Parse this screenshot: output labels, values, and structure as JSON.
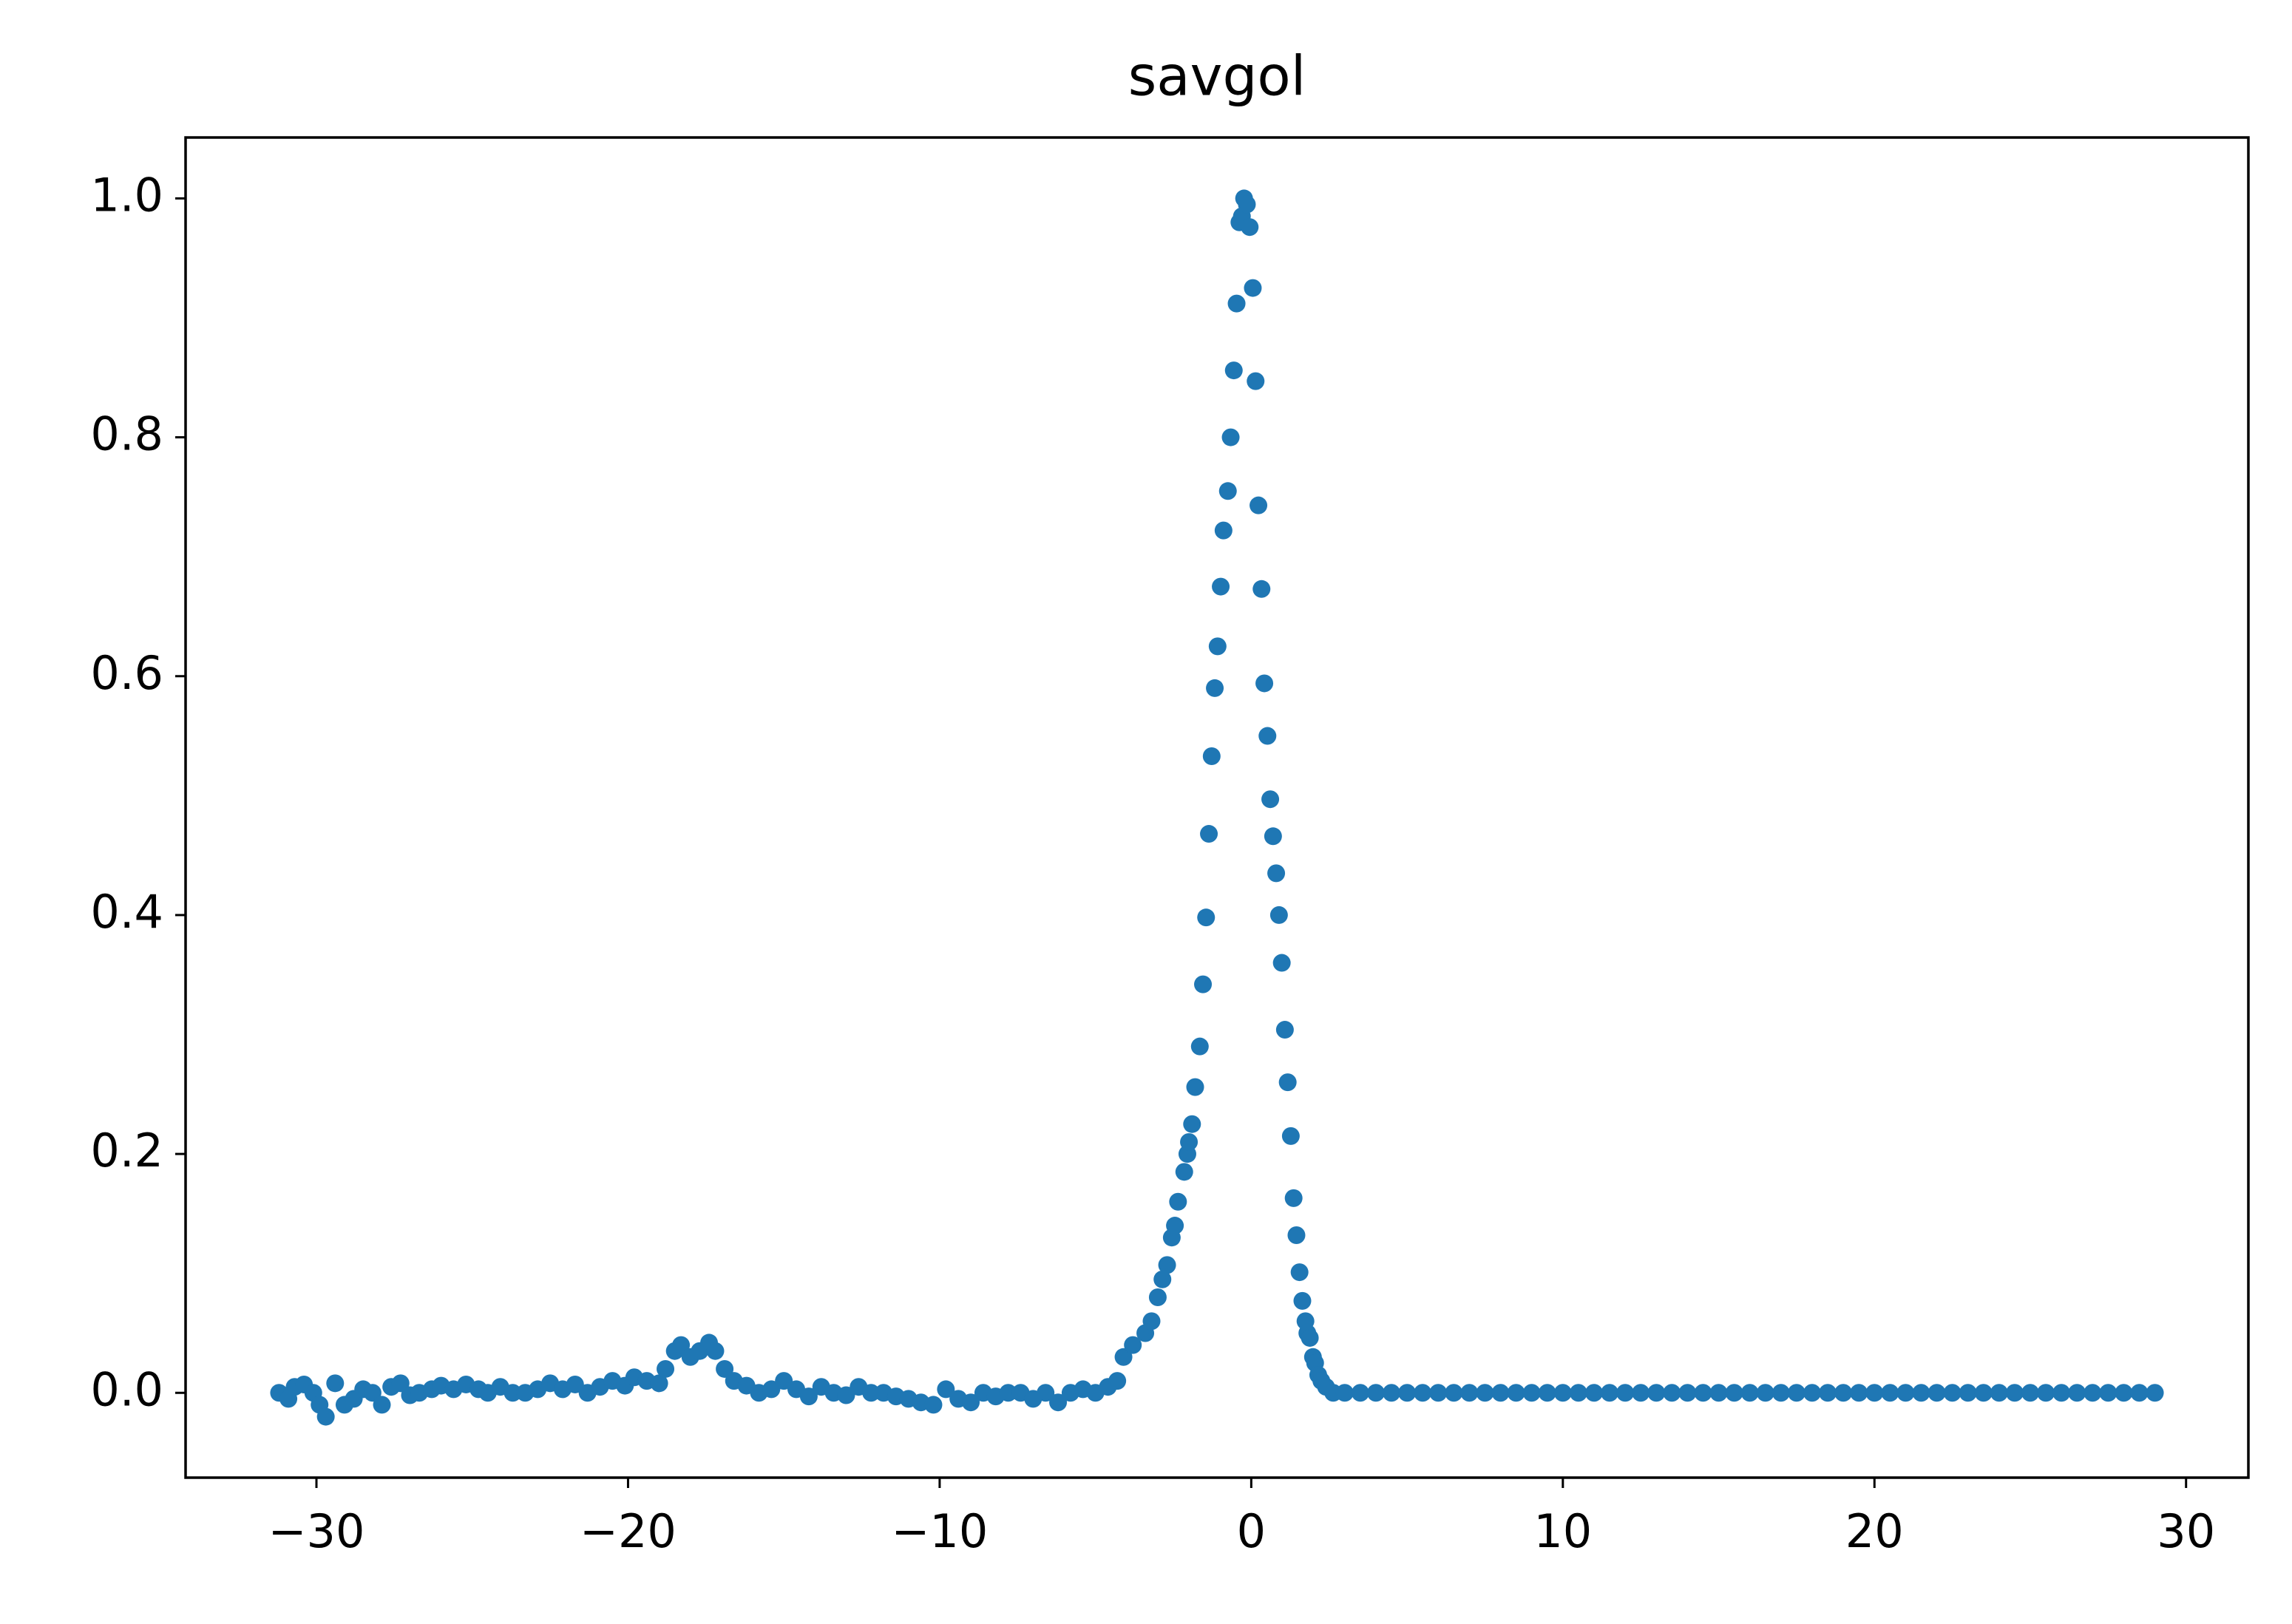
{
  "chart_data": {
    "type": "scatter",
    "title": "savgol",
    "color": "#1f77b4",
    "x": [
      -31.2,
      -30.9,
      -30.7,
      -30.4,
      -30.1,
      -29.9,
      -29.7,
      -29.4,
      -29.1,
      -28.8,
      -28.5,
      -28.2,
      -27.9,
      -27.6,
      -27.3,
      -27.0,
      -26.7,
      -26.3,
      -26.0,
      -25.6,
      -25.2,
      -24.8,
      -24.5,
      -24.1,
      -23.7,
      -23.3,
      -22.9,
      -22.5,
      -22.1,
      -21.7,
      -21.3,
      -20.9,
      -20.5,
      -20.1,
      -19.8,
      -19.4,
      -19.0,
      -18.8,
      -18.5,
      -18.3,
      -18.0,
      -17.7,
      -17.4,
      -17.2,
      -16.9,
      -16.6,
      -16.2,
      -15.8,
      -15.4,
      -15.0,
      -14.6,
      -14.2,
      -13.8,
      -13.4,
      -13.0,
      -12.6,
      -12.2,
      -11.8,
      -11.4,
      -11.0,
      -10.6,
      -10.2,
      -9.8,
      -9.4,
      -9.0,
      -8.6,
      -8.2,
      -7.8,
      -7.4,
      -7.0,
      -6.6,
      -6.2,
      -5.8,
      -5.4,
      -5.0,
      -4.6,
      -4.3,
      -4.1,
      -3.8,
      -3.4,
      -3.2,
      -3.0,
      -2.85,
      -2.7,
      -2.55,
      -2.45,
      -2.35,
      -2.15,
      -2.05,
      -2.0,
      -1.9,
      -1.8,
      -1.65,
      -1.55,
      -1.45,
      -1.36,
      -1.27,
      -1.17,
      -1.08,
      -0.98,
      -0.89,
      -0.75,
      -0.66,
      -0.56,
      -0.47,
      -0.38,
      -0.3,
      -0.23,
      -0.14,
      -0.05,
      0.05,
      0.14,
      0.23,
      0.33,
      0.42,
      0.52,
      0.61,
      0.7,
      0.8,
      0.89,
      0.98,
      1.08,
      1.17,
      1.27,
      1.36,
      1.45,
      1.55,
      1.64,
      1.74,
      1.8,
      1.88,
      1.98,
      2.05,
      2.15,
      2.25,
      2.4,
      2.63,
      3.0,
      3.5,
      4.0,
      4.5,
      5.0,
      5.5,
      6.0,
      6.5,
      7.0,
      7.5,
      8.0,
      8.5,
      9.0,
      9.5,
      10.0,
      10.5,
      11.0,
      11.5,
      12.0,
      12.5,
      13.0,
      13.5,
      14.0,
      14.5,
      15.0,
      15.5,
      16.0,
      16.5,
      17.0,
      17.5,
      18.0,
      18.5,
      19.0,
      19.5,
      20.0,
      20.5,
      21.0,
      21.5,
      22.0,
      22.5,
      23.0,
      23.5,
      24.0,
      24.5,
      25.0,
      25.5,
      26.0,
      26.5,
      27.0,
      27.5,
      28.0,
      28.5,
      29.0
    ],
    "values": [
      0.0,
      -0.005,
      0.005,
      0.007,
      0.0,
      -0.01,
      -0.02,
      0.008,
      -0.01,
      -0.005,
      0.003,
      0.0,
      -0.01,
      0.005,
      0.008,
      -0.002,
      0.0,
      0.003,
      0.006,
      0.003,
      0.007,
      0.003,
      0.0,
      0.005,
      0.0,
      0.0,
      0.003,
      0.008,
      0.003,
      0.007,
      0.0,
      0.005,
      0.01,
      0.006,
      0.013,
      0.01,
      0.008,
      0.02,
      0.035,
      0.04,
      0.03,
      0.035,
      0.042,
      0.035,
      0.02,
      0.01,
      0.006,
      0.0,
      0.003,
      0.01,
      0.003,
      -0.003,
      0.005,
      0.0,
      -0.002,
      0.005,
      0.0,
      0.0,
      -0.003,
      -0.005,
      -0.008,
      -0.01,
      0.003,
      -0.005,
      -0.008,
      0.0,
      -0.003,
      0.0,
      0.0,
      -0.005,
      0.0,
      -0.008,
      0.0,
      0.003,
      0.0,
      0.005,
      0.01,
      0.03,
      0.04,
      0.05,
      0.06,
      0.08,
      0.095,
      0.107,
      0.13,
      0.14,
      0.16,
      0.185,
      0.2,
      0.21,
      0.225,
      0.256,
      0.29,
      0.342,
      0.398,
      0.468,
      0.533,
      0.59,
      0.625,
      0.675,
      0.722,
      0.755,
      0.8,
      0.856,
      0.912,
      0.98,
      0.985,
      1.0,
      0.995,
      0.976,
      0.925,
      0.847,
      0.743,
      0.673,
      0.594,
      0.55,
      0.497,
      0.466,
      0.435,
      0.4,
      0.36,
      0.304,
      0.26,
      0.215,
      0.163,
      0.132,
      0.101,
      0.077,
      0.06,
      0.05,
      0.046,
      0.03,
      0.025,
      0.015,
      0.01,
      0.005,
      0.0,
      0,
      0,
      0,
      0,
      0,
      0,
      0,
      0,
      0,
      0,
      0,
      0,
      0,
      0,
      0,
      0,
      0,
      0,
      0,
      0,
      0,
      0,
      0,
      0,
      0,
      0,
      0,
      0,
      0,
      0,
      0,
      0,
      0,
      0,
      0,
      0,
      0,
      0,
      0,
      0,
      0,
      0,
      0,
      0,
      0,
      0,
      0,
      0,
      0,
      0,
      0,
      0,
      0
    ],
    "xlim": [
      -34.2,
      32.0
    ],
    "ylim": [
      -0.071,
      1.051
    ],
    "xticks": [
      {
        "value": -30,
        "label": "−30"
      },
      {
        "value": -20,
        "label": "−20"
      },
      {
        "value": -10,
        "label": "−10"
      },
      0,
      10,
      20,
      30
    ],
    "yticks": [
      {
        "value": 0,
        "label": "0.0"
      },
      {
        "value": 0.2,
        "label": "0.2"
      },
      {
        "value": 0.4,
        "label": "0.4"
      },
      {
        "value": 0.6,
        "label": "0.6"
      },
      {
        "value": 0.8,
        "label": "0.8"
      },
      {
        "value": 1,
        "label": "1.0"
      }
    ],
    "grid": false
  }
}
